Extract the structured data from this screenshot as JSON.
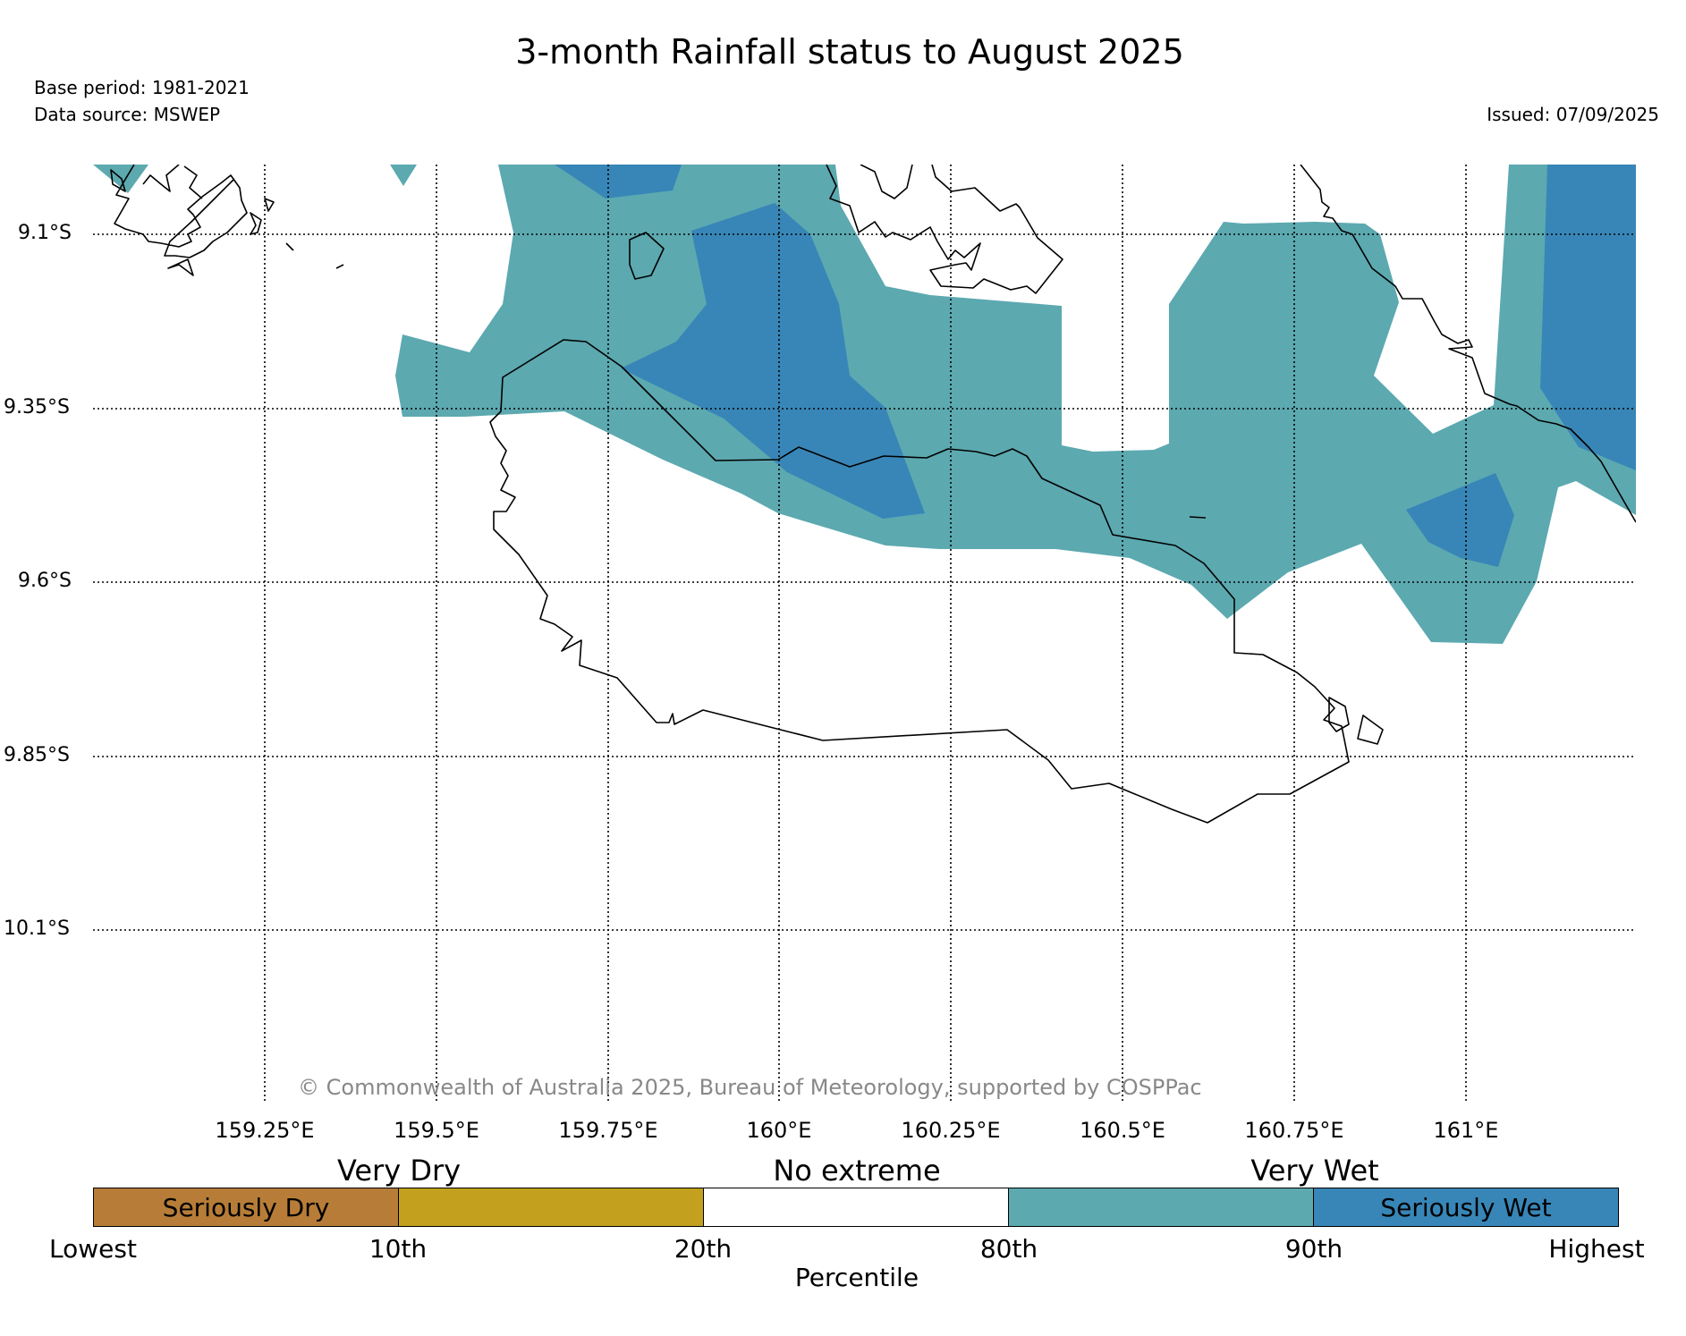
{
  "title": "3-month Rainfall status to August 2025",
  "meta": {
    "base_period": "Base period: 1981-2021",
    "data_source": "Data source: MSWEP",
    "issued": "Issued: 07/09/2025"
  },
  "map": {
    "copyright": "© Commonwealth of Australia 2025, Bureau of Meteorology, supported by COSPPac",
    "lon_labels": [
      "159.25°E",
      "159.5°E",
      "159.75°E",
      "160°E",
      "160.25°E",
      "160.5°E",
      "160.75°E",
      "161°E"
    ],
    "lat_labels": [
      "9.1°S",
      "9.35°S",
      "9.6°S",
      "9.85°S",
      "10.1°S"
    ],
    "colors": {
      "very_wet": "#5ca9b0",
      "seriously_wet": "#3886b7",
      "coastline": "#000000",
      "gridline": "#000000"
    }
  },
  "legend": {
    "categories": {
      "very_dry": "Very Dry",
      "no_extreme": "No extreme",
      "very_wet": "Very Wet"
    },
    "segments": [
      {
        "label": "Seriously Dry",
        "color": "#b77d38"
      },
      {
        "label": "",
        "color": "#c3a11e"
      },
      {
        "label": "",
        "color": "#ffffff"
      },
      {
        "label": "",
        "color": "#5ca9b0"
      },
      {
        "label": "Seriously Wet",
        "color": "#3886b7"
      }
    ],
    "ticks": [
      "Lowest",
      "10th",
      "20th",
      "80th",
      "90th",
      "Highest"
    ],
    "axis_title": "Percentile"
  }
}
